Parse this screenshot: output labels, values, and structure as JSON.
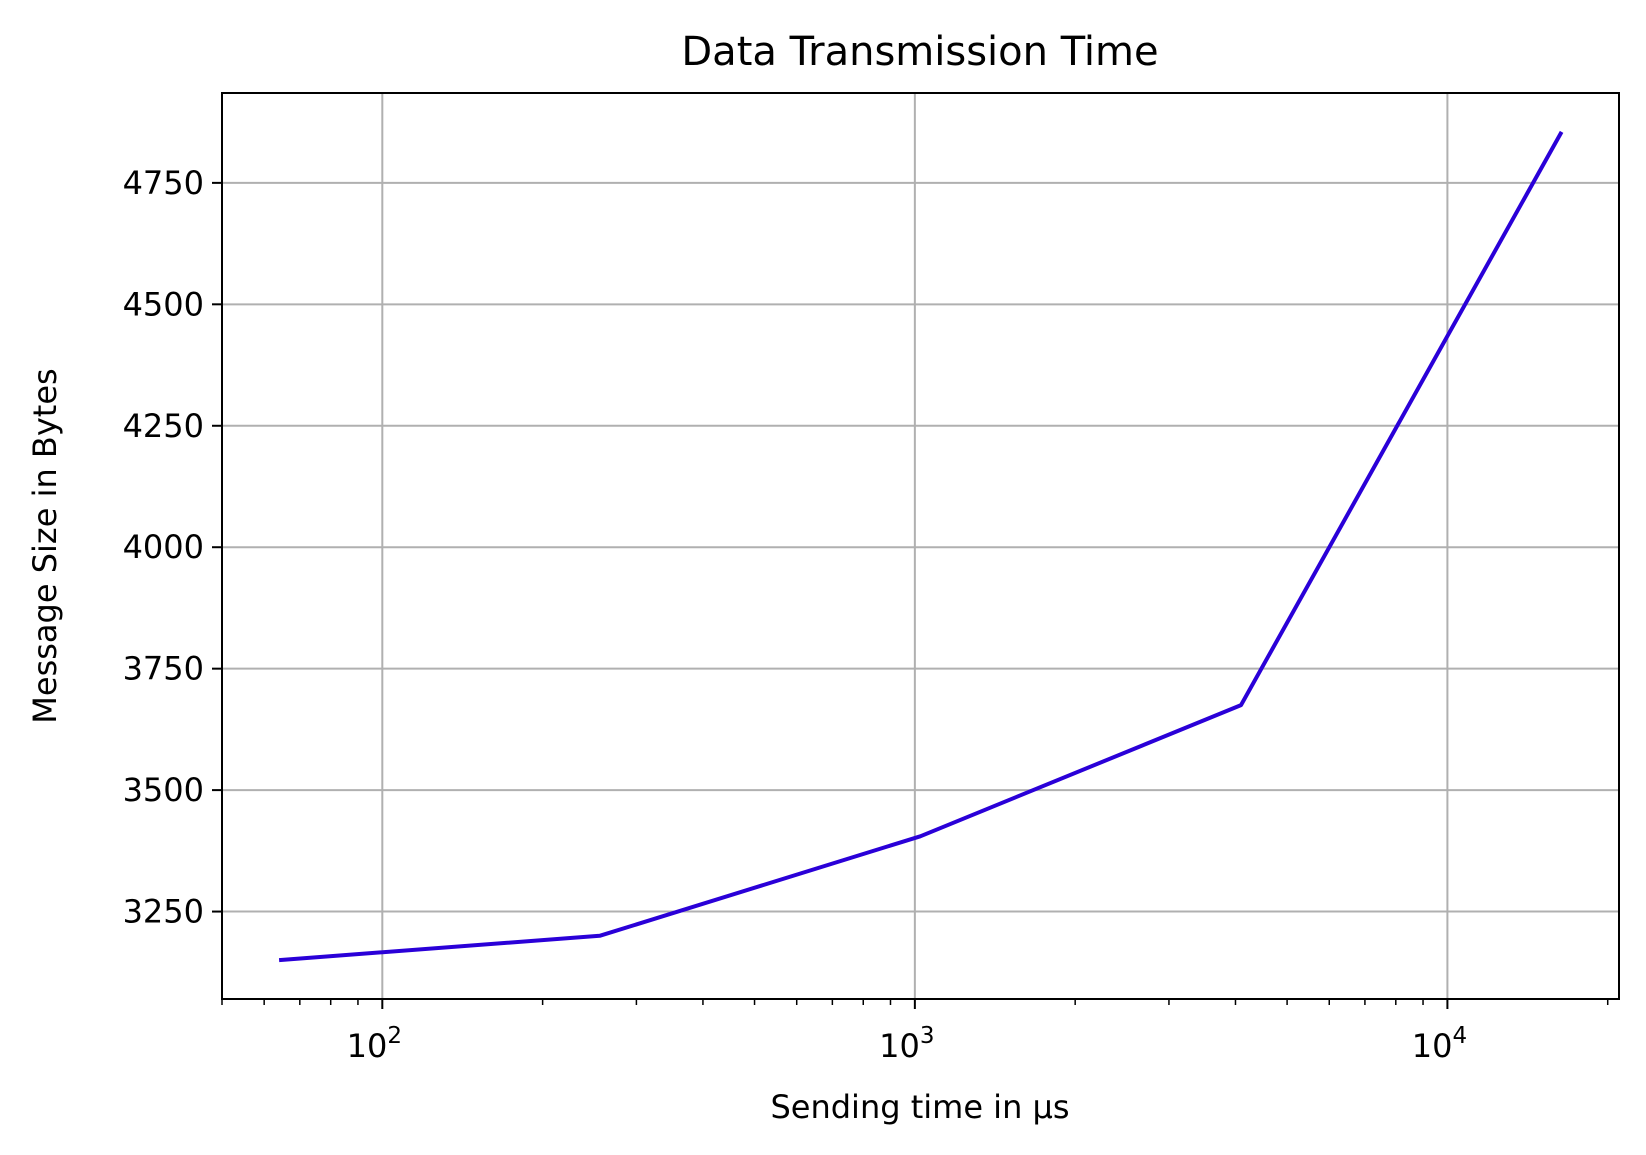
{
  "chart_data": {
    "type": "line",
    "title": "Data Transmission Time",
    "xlabel": "Sending time in µs",
    "ylabel": "Message Size in Bytes",
    "xscale": "log",
    "xlim": [
      50,
      21000
    ],
    "ylim": [
      3070,
      4935
    ],
    "grid": true,
    "x_ticks": [
      {
        "value": 100,
        "base": "10",
        "exp": "2"
      },
      {
        "value": 1000,
        "base": "10",
        "exp": "3"
      },
      {
        "value": 10000,
        "base": "10",
        "exp": "4"
      }
    ],
    "y_ticks": [
      3250,
      3500,
      3750,
      4000,
      4250,
      4500,
      4750
    ],
    "series": [
      {
        "color": "#2a00d8",
        "x": [
          64,
          256,
          1024,
          4096,
          16384
        ],
        "y": [
          3150,
          3200,
          3405,
          3675,
          4855
        ]
      }
    ]
  }
}
